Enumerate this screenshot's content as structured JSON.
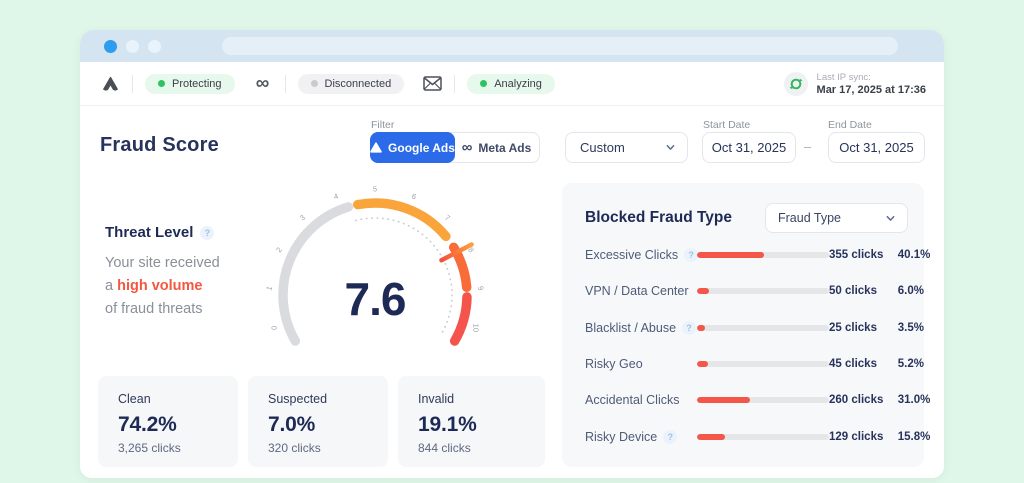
{
  "toolbar": {
    "google_status": "Protecting",
    "meta_status": "Disconnected",
    "email_status": "Analyzing",
    "sync_label": "Last IP sync:",
    "sync_value": "Mar 17, 2025 at 17:36"
  },
  "header": {
    "title": "Fraud Score",
    "filter_label": "Filter",
    "filters": [
      {
        "label": "Google Ads",
        "active": true
      },
      {
        "label": "Meta Ads",
        "active": false
      }
    ],
    "range_selected": "Custom",
    "start_date_label": "Start Date",
    "start_date_value": "Oct 31, 2025",
    "date_separator": "–",
    "end_date_label": "End Date",
    "end_date_value": "Oct 31, 2025"
  },
  "threat": {
    "title": "Threat Level",
    "line1": "Your site received",
    "line2_prefix": "a ",
    "line2_highlight": "high volume",
    "line3": "of fraud threats"
  },
  "stats": [
    {
      "label": "Clean",
      "value": "74.2%",
      "sub": "3,265 clicks"
    },
    {
      "label": "Suspected",
      "value": "7.0%",
      "sub": "320 clicks"
    },
    {
      "label": "Invalid",
      "value": "19.1%",
      "sub": "844 clicks"
    }
  ],
  "blocked": {
    "title": "Blocked Fraud Type",
    "dropdown": "Fraud Type",
    "rows": [
      {
        "label": "Excessive Clicks",
        "help": true,
        "clicks": "355 clicks",
        "pct": "40.1%",
        "pct_value": 40.1
      },
      {
        "label": "VPN / Data Center",
        "help": false,
        "clicks": "50 clicks",
        "pct": "6.0%",
        "pct_value": 6.0
      },
      {
        "label": "Blacklist / Abuse",
        "help": true,
        "clicks": "25 clicks",
        "pct": "3.5%",
        "pct_value": 3.5
      },
      {
        "label": "Risky Geo",
        "help": false,
        "clicks": "45 clicks",
        "pct": "5.2%",
        "pct_value": 5.2
      },
      {
        "label": "Accidental Clicks",
        "help": false,
        "clicks": "260 clicks",
        "pct": "31.0%",
        "pct_value": 31.0
      },
      {
        "label": "Risky Device",
        "help": true,
        "clicks": "129 clicks",
        "pct": "15.8%",
        "pct_value": 15.8
      }
    ]
  },
  "chart_data": [
    {
      "type": "gauge",
      "title": "Fraud Score gauge",
      "value": 7.6,
      "center_label": "7.6",
      "min": 0,
      "max": 10,
      "tick_labels": [
        "0",
        "1",
        "2",
        "3",
        "4",
        "5",
        "6",
        "7",
        "8",
        "9",
        "10"
      ],
      "segments": [
        {
          "from": 0,
          "to": 4.3,
          "color": "#D9DBDE"
        },
        {
          "from": 4.55,
          "to": 7.1,
          "color": "#FAA53C"
        },
        {
          "from": 7.45,
          "to": 8.55,
          "color": "#FA6B3A"
        },
        {
          "from": 8.8,
          "to": 10,
          "color": "#F4544C"
        }
      ],
      "needle_value": 7.6,
      "needle_colors": [
        "#FBA03C",
        "#F4503F"
      ]
    },
    {
      "type": "bar",
      "title": "Blocked Fraud Type",
      "categories": [
        "Excessive Clicks",
        "VPN / Data Center",
        "Blacklist / Abuse",
        "Risky Geo",
        "Accidental Clicks",
        "Risky Device"
      ],
      "values": [
        40.1,
        6.0,
        3.5,
        5.2,
        31.0,
        15.8
      ],
      "clicks": [
        355,
        50,
        25,
        45,
        260,
        129
      ],
      "unit": "%",
      "bar_color": "#F4564A",
      "track_color": "#E5E6E8"
    }
  ],
  "colors": {
    "page_bg": "#DFF7E8",
    "chrome_bg": "#D4E4F0",
    "accent_blue": "#2B6AE8",
    "navy": "#1E2A56",
    "red": "#F4564A",
    "green": "#2FC262"
  }
}
